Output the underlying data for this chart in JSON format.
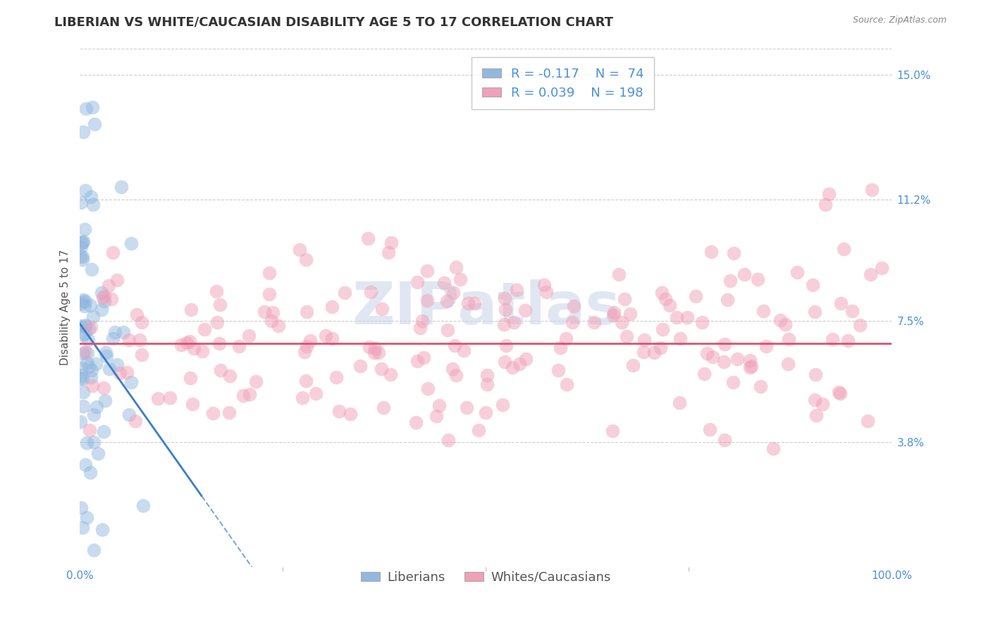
{
  "title": "LIBERIAN VS WHITE/CAUCASIAN DISABILITY AGE 5 TO 17 CORRELATION CHART",
  "source_text": "Source: ZipAtlas.com",
  "ylabel": "Disability Age 5 to 17",
  "xlim": [
    0.0,
    100.0
  ],
  "ylim": [
    0.0,
    15.8
  ],
  "ytick_positions": [
    3.8,
    7.5,
    11.2,
    15.0
  ],
  "ytick_labels": [
    "3.8%",
    "7.5%",
    "11.2%",
    "15.0%"
  ],
  "xtick_positions": [
    0.0,
    100.0
  ],
  "xtick_labels": [
    "0.0%",
    "100.0%"
  ],
  "liberian_color": "#92b8e0",
  "caucasian_color": "#f0a0b8",
  "liberian_line_color": "#3a7dc8",
  "caucasian_line_color": "#e05070",
  "dashed_line_color": "#7aaad8",
  "legend_box_color": "#ffffff",
  "legend_border_color": "#bbbbbb",
  "R_liberian": -0.117,
  "N_liberian": 74,
  "R_caucasian": 0.039,
  "N_caucasian": 198,
  "grid_color": "#cccccc",
  "title_fontsize": 13,
  "axis_label_fontsize": 11,
  "tick_label_fontsize": 11,
  "legend_fontsize": 13,
  "watermark_text": "ZIPatlas",
  "watermark_color": "#ccd8ea",
  "watermark_fontsize": 60,
  "background_color": "#ffffff",
  "scatter_alpha": 0.5,
  "scatter_size": 200,
  "liberian_seed": 42,
  "caucasian_seed": 7
}
